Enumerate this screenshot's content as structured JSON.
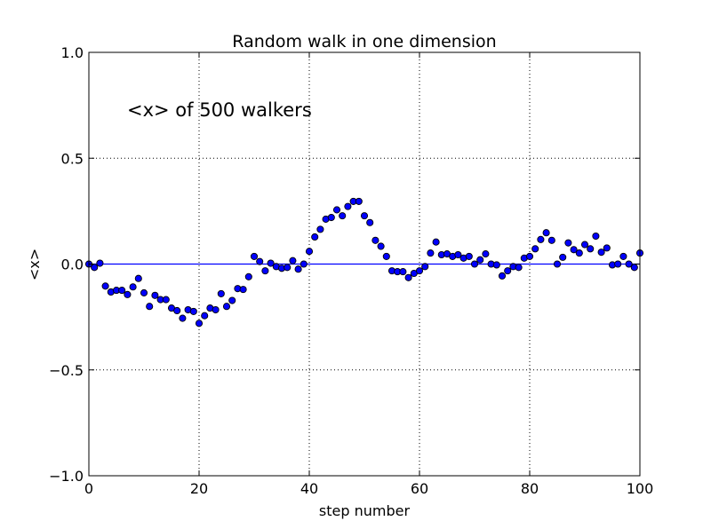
{
  "chart_data": {
    "type": "scatter",
    "title": "Random walk in one dimension",
    "xlabel": "step number",
    "ylabel": "<x>",
    "annotation": "<x> of 500 walkers",
    "xlim": [
      0,
      100
    ],
    "ylim": [
      -1.0,
      1.0
    ],
    "xticks": [
      0,
      20,
      40,
      60,
      80,
      100
    ],
    "xtick_labels": [
      "0",
      "20",
      "40",
      "60",
      "80",
      "100"
    ],
    "yticks": [
      -1.0,
      -0.5,
      0.0,
      0.5,
      1.0
    ],
    "ytick_labels": [
      "−1.0",
      "−0.5",
      "0.0",
      "0.5",
      "1.0"
    ],
    "grid": true,
    "reference_line": {
      "y": 0.0,
      "color": "#0000ff"
    },
    "marker_color": "#0000ff",
    "marker_edge_color": "#000000",
    "series": [
      {
        "x": [
          0,
          1,
          2,
          3,
          4,
          5,
          6,
          7,
          8,
          9,
          10,
          11,
          12,
          13,
          14,
          15,
          16,
          17,
          18,
          19,
          20,
          21,
          22,
          23,
          24,
          25,
          26,
          27,
          28,
          29,
          30,
          31,
          32,
          33,
          34,
          35,
          36,
          37,
          38,
          39,
          40,
          41,
          42,
          43,
          44,
          45,
          46,
          47,
          48,
          49,
          50,
          51,
          52,
          53,
          54,
          55,
          56,
          57,
          58,
          59,
          60,
          61,
          62,
          63,
          64,
          65,
          66,
          67,
          68,
          69,
          70,
          71,
          72,
          73,
          74,
          75,
          76,
          77,
          78,
          79,
          80,
          81,
          82,
          83,
          84,
          85,
          86,
          87,
          88,
          89,
          90,
          91,
          92,
          93,
          94,
          95,
          96,
          97,
          98,
          99,
          100
        ],
        "y": [
          0.0,
          -0.016,
          0.004,
          -0.104,
          -0.132,
          -0.124,
          -0.124,
          -0.144,
          -0.108,
          -0.068,
          -0.136,
          -0.2,
          -0.148,
          -0.168,
          -0.168,
          -0.208,
          -0.22,
          -0.256,
          -0.216,
          -0.224,
          -0.28,
          -0.244,
          -0.208,
          -0.216,
          -0.14,
          -0.2,
          -0.172,
          -0.116,
          -0.12,
          -0.06,
          0.036,
          0.012,
          -0.032,
          0.004,
          -0.012,
          -0.02,
          -0.016,
          0.016,
          -0.024,
          0.0,
          0.06,
          0.128,
          0.164,
          0.212,
          0.22,
          0.256,
          0.228,
          0.272,
          0.296,
          0.296,
          0.228,
          0.196,
          0.112,
          0.084,
          0.036,
          -0.032,
          -0.036,
          -0.036,
          -0.064,
          -0.044,
          -0.032,
          -0.012,
          0.052,
          0.104,
          0.044,
          0.048,
          0.036,
          0.044,
          0.028,
          0.036,
          0.0,
          0.02,
          0.048,
          0.0,
          -0.004,
          -0.056,
          -0.032,
          -0.012,
          -0.016,
          0.028,
          0.036,
          0.072,
          0.116,
          0.148,
          0.112,
          0.0,
          0.032,
          0.1,
          0.068,
          0.052,
          0.092,
          0.072,
          0.132,
          0.056,
          0.076,
          -0.004,
          0.0,
          0.036,
          0.0,
          -0.016,
          0.052
        ]
      }
    ]
  }
}
